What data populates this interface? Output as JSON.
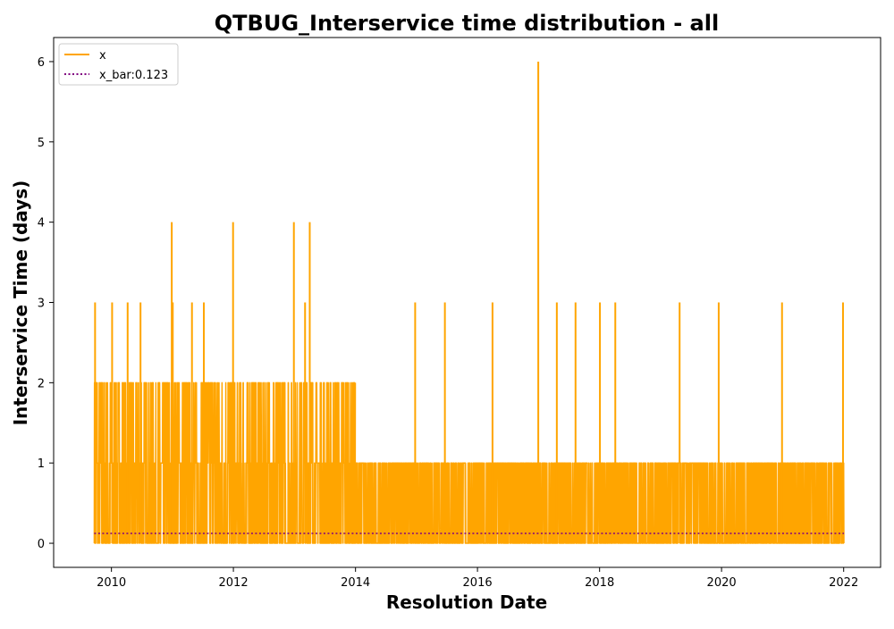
{
  "chart_data": {
    "type": "line",
    "title": "QTBUG_Interservice time distribution - all",
    "xlabel": "Resolution Date",
    "ylabel": "Interservice Time (days)",
    "xlim": [
      "2009-01-20",
      "2022-08-10"
    ],
    "ylim": [
      -0.3,
      6.3
    ],
    "x_ticks": [
      "2010",
      "2012",
      "2014",
      "2016",
      "2018",
      "2020",
      "2022"
    ],
    "y_ticks": [
      "0",
      "1",
      "2",
      "3",
      "4",
      "5",
      "6"
    ],
    "grid": false,
    "legend_position": "top-left",
    "series": [
      {
        "name": "x",
        "color": "#FFA500",
        "style": "solid",
        "x_range": [
          "2009-09-20",
          "2022-01-03"
        ],
        "dense_bands": [
          {
            "from": "2009-09-20",
            "to": "2013-12-31",
            "min": 0,
            "max": 2
          },
          {
            "from": "2014-01-01",
            "to": "2022-01-03",
            "min": 0,
            "max": 1
          }
        ],
        "points": [
          {
            "x": "2009-09-25",
            "y": 3
          },
          {
            "x": "2010-01-05",
            "y": 3
          },
          {
            "x": "2010-04-08",
            "y": 3
          },
          {
            "x": "2010-06-24",
            "y": 3
          },
          {
            "x": "2010-12-28",
            "y": 4
          },
          {
            "x": "2011-01-03",
            "y": 3
          },
          {
            "x": "2011-04-28",
            "y": 3
          },
          {
            "x": "2011-07-08",
            "y": 3
          },
          {
            "x": "2011-12-30",
            "y": 4
          },
          {
            "x": "2012-12-28",
            "y": 4
          },
          {
            "x": "2013-03-05",
            "y": 3
          },
          {
            "x": "2013-04-02",
            "y": 4
          },
          {
            "x": "2014-12-24",
            "y": 3
          },
          {
            "x": "2015-06-20",
            "y": 3
          },
          {
            "x": "2016-03-31",
            "y": 3
          },
          {
            "x": "2016-12-30",
            "y": 6
          },
          {
            "x": "2017-04-20",
            "y": 3
          },
          {
            "x": "2017-08-10",
            "y": 3
          },
          {
            "x": "2018-01-03",
            "y": 3
          },
          {
            "x": "2018-04-05",
            "y": 3
          },
          {
            "x": "2019-04-25",
            "y": 3
          },
          {
            "x": "2019-12-15",
            "y": 3
          },
          {
            "x": "2020-12-28",
            "y": 3
          },
          {
            "x": "2021-12-28",
            "y": 3
          }
        ]
      },
      {
        "name": "x_bar:0.123",
        "color": "#800080",
        "style": "dotted",
        "constant": 0.123
      }
    ]
  }
}
